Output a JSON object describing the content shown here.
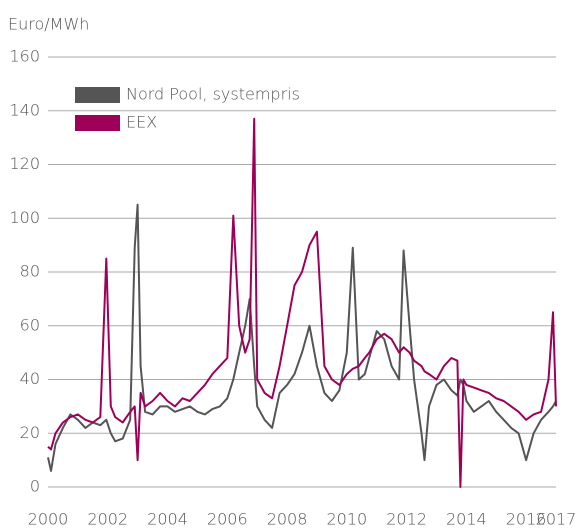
{
  "chart_data": {
    "type": "line",
    "y_label": "Euro/MWh",
    "x": [
      2000.0,
      2000.1,
      2000.25,
      2000.5,
      2000.75,
      2001.0,
      2001.25,
      2001.5,
      2001.75,
      2001.95,
      2002.1,
      2002.25,
      2002.5,
      2002.75,
      2002.9,
      2003.0,
      2003.1,
      2003.25,
      2003.5,
      2003.75,
      2004.0,
      2004.25,
      2004.5,
      2004.75,
      2005.0,
      2005.25,
      2005.5,
      2005.75,
      2006.0,
      2006.2,
      2006.4,
      2006.6,
      2006.75,
      2006.9,
      2007.0,
      2007.25,
      2007.5,
      2007.75,
      2008.0,
      2008.25,
      2008.5,
      2008.75,
      2009.0,
      2009.25,
      2009.5,
      2009.75,
      2010.0,
      2010.2,
      2010.4,
      2010.6,
      2010.75,
      2011.0,
      2011.25,
      2011.5,
      2011.75,
      2011.9,
      2012.1,
      2012.25,
      2012.5,
      2012.6,
      2012.75,
      2013.0,
      2013.25,
      2013.5,
      2013.7,
      2013.8,
      2013.9,
      2014.0,
      2014.25,
      2014.5,
      2014.75,
      2015.0,
      2015.25,
      2015.5,
      2015.75,
      2016.0,
      2016.25,
      2016.5,
      2016.75,
      2016.9,
      2017.0
    ],
    "series": [
      {
        "name": "Nord Pool, systempris",
        "color": "#555555",
        "values": [
          11,
          6,
          16,
          22,
          27,
          25,
          22,
          24,
          23,
          25,
          20,
          17,
          18,
          25,
          89,
          105,
          45,
          28,
          27,
          30,
          30,
          28,
          29,
          30,
          28,
          27,
          29,
          30,
          33,
          40,
          50,
          60,
          70,
          45,
          30,
          25,
          22,
          35,
          38,
          42,
          50,
          60,
          45,
          35,
          32,
          36,
          50,
          89,
          40,
          42,
          48,
          58,
          55,
          45,
          40,
          88,
          60,
          40,
          20,
          10,
          30,
          38,
          40,
          36,
          34,
          40,
          38,
          32,
          28,
          30,
          32,
          28,
          25,
          22,
          20,
          10,
          20,
          25,
          28,
          30,
          32
        ]
      },
      {
        "name": "EEX",
        "color": "#9e0059",
        "values": [
          15,
          14,
          20,
          24,
          26,
          27,
          25,
          24,
          26,
          85,
          30,
          26,
          24,
          28,
          30,
          10,
          35,
          30,
          32,
          35,
          32,
          30,
          33,
          32,
          35,
          38,
          42,
          45,
          48,
          101,
          60,
          50,
          55,
          137,
          40,
          35,
          33,
          45,
          60,
          75,
          80,
          90,
          95,
          45,
          40,
          38,
          42,
          44,
          45,
          48,
          50,
          55,
          57,
          55,
          50,
          52,
          50,
          47,
          45,
          43,
          42,
          40,
          45,
          48,
          47,
          0,
          40,
          38,
          37,
          36,
          35,
          33,
          32,
          30,
          28,
          25,
          27,
          28,
          40,
          65,
          30
        ]
      }
    ],
    "xlim": [
      2000,
      2017
    ],
    "xticks": [
      2000,
      2002,
      2004,
      2006,
      2008,
      2010,
      2012,
      2014,
      2016,
      2017
    ],
    "ylim": [
      0,
      160
    ],
    "yticks": [
      0,
      20,
      40,
      60,
      80,
      100,
      120,
      140,
      160
    ],
    "grid": true
  }
}
